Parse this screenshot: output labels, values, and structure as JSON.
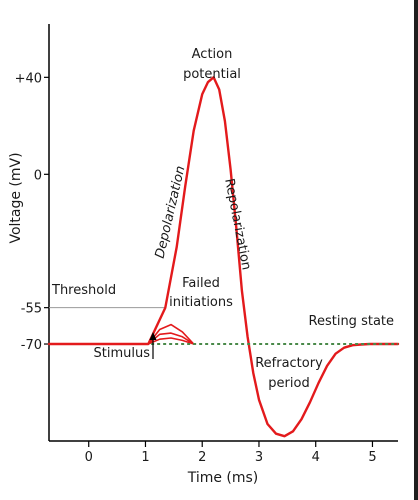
{
  "chart_data": {
    "type": "line",
    "xlabel": "Time (ms)",
    "ylabel": "Voltage (mV)",
    "xlim": [
      -0.7,
      5.45
    ],
    "ylim": [
      -110,
      62
    ],
    "x_ticks": [
      {
        "value": 0,
        "label": "0"
      },
      {
        "value": 1,
        "label": "1"
      },
      {
        "value": 2,
        "label": "2"
      },
      {
        "value": 3,
        "label": "3"
      },
      {
        "value": 4,
        "label": "4"
      },
      {
        "value": 5,
        "label": "5"
      }
    ],
    "y_ticks": [
      {
        "value": 40,
        "label": "+40"
      },
      {
        "value": 0,
        "label": "0"
      },
      {
        "value": -55,
        "label": "-55"
      },
      {
        "value": -70,
        "label": "-70"
      }
    ],
    "grid": false,
    "series": [
      {
        "color": "#e31a1c",
        "x": [
          -0.7,
          1.05,
          1.35,
          1.55,
          1.7,
          1.85,
          2.0,
          2.1,
          2.2,
          2.3,
          2.4,
          2.5,
          2.6,
          2.7,
          2.8,
          2.9,
          3.0,
          3.15,
          3.3,
          3.45,
          3.6,
          3.75,
          3.9,
          4.05,
          4.2,
          4.35,
          4.5,
          4.65,
          4.8,
          4.95,
          5.1,
          5.45
        ],
        "y": [
          -70,
          -70,
          -55,
          -30,
          -5,
          18,
          33,
          38,
          40,
          35,
          22,
          2,
          -22,
          -48,
          -67,
          -82,
          -93,
          -103,
          -107,
          -108,
          -106,
          -101,
          -94,
          -86,
          -79,
          -74,
          -71.5,
          -70.5,
          -70.2,
          -70,
          -70,
          -70
        ]
      }
    ],
    "failed_initiations": [
      {
        "x": [
          1.05,
          1.25,
          1.45,
          1.65,
          1.85
        ],
        "y": [
          -70,
          -64,
          -62,
          -65,
          -70
        ]
      },
      {
        "x": [
          1.05,
          1.25,
          1.45,
          1.65,
          1.85
        ],
        "y": [
          -70,
          -66,
          -65.5,
          -67,
          -70
        ]
      },
      {
        "x": [
          1.05,
          1.25,
          1.45,
          1.65,
          1.85
        ],
        "y": [
          -70,
          -68,
          -67.5,
          -68.5,
          -70
        ]
      }
    ],
    "threshold": {
      "label": "Threshold",
      "value": -55,
      "x_from": -0.7,
      "x_to": 1.35,
      "color": "#999999"
    },
    "resting": {
      "label": "Resting state",
      "value": -70,
      "x_from": 1.1,
      "x_to": 5.45,
      "color": "#4a8a4a"
    },
    "annotations": {
      "action_potential": [
        "Action",
        "potential"
      ],
      "depolarization": "Depolarization",
      "repolarization": "Repolarization",
      "failed_initiations": [
        "Failed",
        "initiations"
      ],
      "refractory_period": [
        "Refractory",
        "period"
      ],
      "stimulus": "Stimulus"
    }
  }
}
